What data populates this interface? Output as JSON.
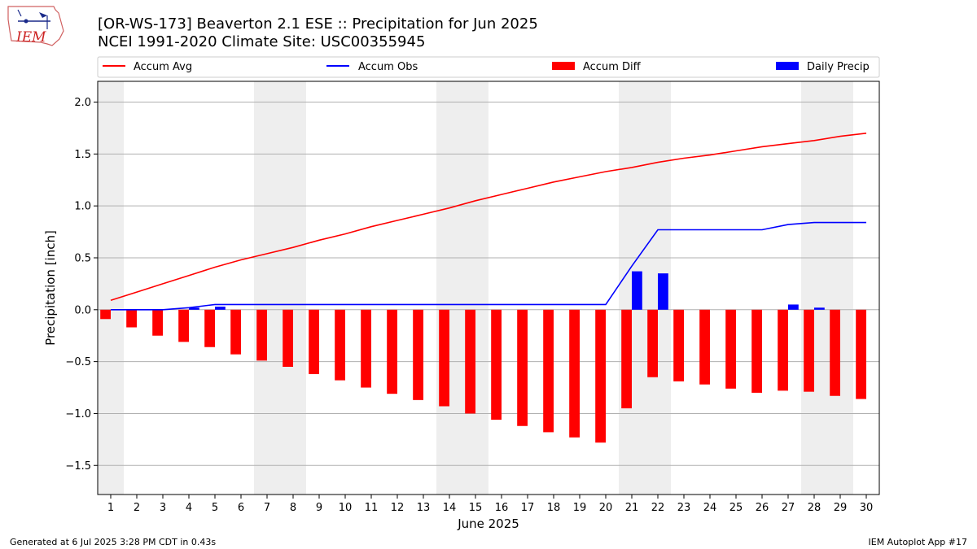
{
  "title": {
    "line1": "[OR-WS-173] Beaverton 2.1 ESE :: Precipitation for Jun 2025",
    "line2": "NCEI 1991-2020 Climate Site: USC00355945"
  },
  "logo_text": "IEM",
  "footer": {
    "left": "Generated at 6 Jul 2025 3:28 PM CDT in 0.43s",
    "right": "IEM Autoplot App #17"
  },
  "colors": {
    "accum_avg": "#ff0000",
    "accum_obs": "#0000ff",
    "accum_diff": "#ff0000",
    "daily_precip": "#0000ff",
    "weekend_shade": "#eeeeee",
    "grid": "#b0b0b0"
  },
  "chart_data": {
    "type": "bar",
    "xlabel": "June 2025",
    "ylabel": "Precipitation [inch]",
    "ylim": [
      -1.78,
      2.2
    ],
    "xlim": [
      0.5,
      30.5
    ],
    "yticks": [
      -1.5,
      -1.0,
      -0.5,
      0.0,
      0.5,
      1.0,
      1.5,
      2.0
    ],
    "ytick_labels": [
      "−1.5",
      "−1.0",
      "−0.5",
      "0.0",
      "0.5",
      "1.0",
      "1.5",
      "2.0"
    ],
    "grid": "horizontal",
    "legend_position": "top",
    "days": [
      1,
      2,
      3,
      4,
      5,
      6,
      7,
      8,
      9,
      10,
      11,
      12,
      13,
      14,
      15,
      16,
      17,
      18,
      19,
      20,
      21,
      22,
      23,
      24,
      25,
      26,
      27,
      28,
      29,
      30
    ],
    "weekend_days": [
      1,
      7,
      8,
      14,
      15,
      21,
      22,
      28,
      29
    ],
    "series": [
      {
        "name": "Accum Avg",
        "kind": "line",
        "values": [
          0.09,
          0.17,
          0.25,
          0.33,
          0.41,
          0.48,
          0.54,
          0.6,
          0.67,
          0.73,
          0.8,
          0.86,
          0.92,
          0.98,
          1.05,
          1.11,
          1.17,
          1.23,
          1.28,
          1.33,
          1.37,
          1.42,
          1.46,
          1.49,
          1.53,
          1.57,
          1.6,
          1.63,
          1.67,
          1.7
        ]
      },
      {
        "name": "Accum Obs",
        "kind": "line",
        "values": [
          0.0,
          0.0,
          0.0,
          0.02,
          0.05,
          0.05,
          0.05,
          0.05,
          0.05,
          0.05,
          0.05,
          0.05,
          0.05,
          0.05,
          0.05,
          0.05,
          0.05,
          0.05,
          0.05,
          0.05,
          0.42,
          0.77,
          0.77,
          0.77,
          0.77,
          0.77,
          0.82,
          0.84,
          0.84,
          0.84
        ]
      },
      {
        "name": "Accum Diff",
        "kind": "bar",
        "values": [
          -0.09,
          -0.17,
          -0.25,
          -0.31,
          -0.36,
          -0.43,
          -0.49,
          -0.55,
          -0.62,
          -0.68,
          -0.75,
          -0.81,
          -0.87,
          -0.93,
          -1.0,
          -1.06,
          -1.12,
          -1.18,
          -1.23,
          -1.28,
          -0.95,
          -0.65,
          -0.69,
          -0.72,
          -0.76,
          -0.8,
          -0.78,
          -0.79,
          -0.83,
          -0.86
        ]
      },
      {
        "name": "Daily Precip",
        "kind": "bar",
        "values": [
          0.0,
          0.0,
          0.0,
          0.02,
          0.03,
          0.0,
          0.0,
          0.0,
          0.0,
          0.0,
          0.0,
          0.0,
          0.0,
          0.0,
          0.0,
          0.0,
          0.0,
          0.0,
          0.0,
          0.0,
          0.37,
          0.35,
          0.0,
          0.0,
          0.0,
          0.0,
          0.05,
          0.02,
          0.0,
          0.0
        ]
      }
    ]
  }
}
